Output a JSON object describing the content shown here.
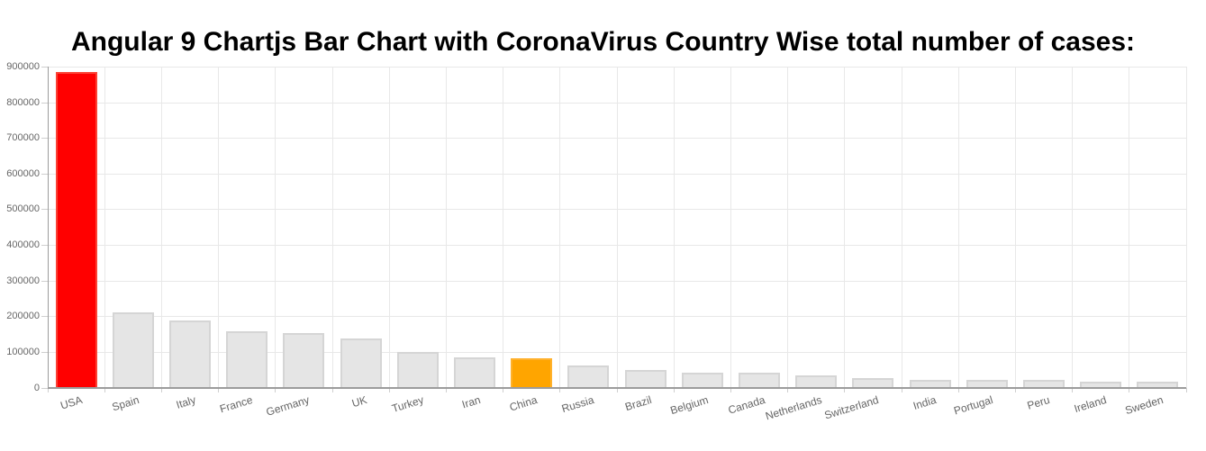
{
  "page": {
    "title": "Angular 9 Chartjs Bar Chart with CoronaVirus Country Wise total number of cases:"
  },
  "chart_data": {
    "type": "bar",
    "title": "Angular 9 Chartjs Bar Chart with CoronaVirus Country Wise total number of cases:",
    "categories": [
      "USA",
      "Spain",
      "Italy",
      "France",
      "Germany",
      "UK",
      "Turkey",
      "Iran",
      "China",
      "Russia",
      "Brazil",
      "Belgium",
      "Canada",
      "Netherlands",
      "Switzerland",
      "India",
      "Portugal",
      "Peru",
      "Ireland",
      "Sweden"
    ],
    "values": [
      886789,
      213024,
      189973,
      158183,
      153129,
      138078,
      101790,
      87026,
      82804,
      62773,
      49492,
      42797,
      42110,
      35729,
      28496,
      23502,
      22353,
      21648,
      17607,
      16755
    ],
    "xlabel": "",
    "ylabel": "",
    "ylim": [
      0,
      900000
    ],
    "ytick_step": 100000,
    "ytick_labels": [
      "0",
      "100000",
      "200000",
      "300000",
      "400000",
      "500000",
      "600000",
      "700000",
      "800000",
      "900000"
    ],
    "grid": true,
    "legend": "none",
    "colors": {
      "default_fill": "#e5e5e5",
      "default_border": "#d5d5d5",
      "highlight": {
        "USA": {
          "fill": "#ff0000",
          "border": "#fb4336"
        },
        "China": {
          "fill": "#ffa500",
          "border": "#ffb12c"
        }
      },
      "grid": "#e8e8e8",
      "axis": "#9c9c9c",
      "tick": "#cfcfcf",
      "text": "#666666",
      "title": "#000000"
    }
  }
}
